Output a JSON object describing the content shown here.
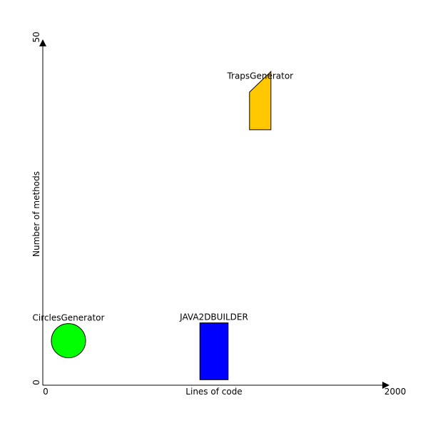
{
  "chart_data": {
    "type": "scatter",
    "xlabel": "Lines of code",
    "ylabel": "Number of methods",
    "xlim": [
      0,
      2000
    ],
    "ylim": [
      0,
      50
    ],
    "x_ticks": [
      "0",
      "2000"
    ],
    "y_ticks": [
      "0",
      "50"
    ],
    "grid": false,
    "points": [
      {
        "name": "CirclesGenerator",
        "shape": "circle",
        "x": 150,
        "y": 4.0,
        "width": 210,
        "height": 5.0,
        "color": "#00ff00"
      },
      {
        "name": "JAVA2DBUILDER",
        "shape": "rectangle",
        "x": 1000,
        "y": 0.8,
        "width": 165,
        "height": 8.3,
        "color": "#0000ff"
      },
      {
        "name": "TrapsGenerator",
        "shape": "trapezoid",
        "x": 1270,
        "y": 37.3,
        "width": 125,
        "height": 7.0,
        "top_offset": 1.5,
        "color": "#ffc800"
      }
    ]
  }
}
